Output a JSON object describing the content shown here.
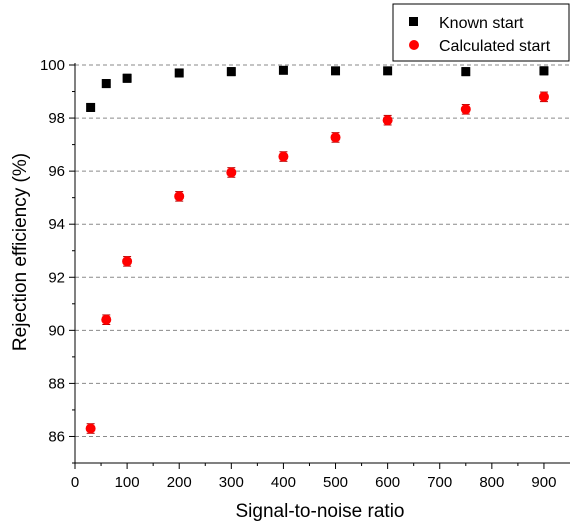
{
  "chart_data": {
    "type": "scatter",
    "title": "",
    "xlabel": "Signal-to-noise ratio",
    "ylabel": "Rejection efficiency (%)",
    "xlim": [
      0,
      950
    ],
    "ylim": [
      85,
      100
    ],
    "x_ticks": [
      0,
      100,
      200,
      300,
      400,
      500,
      600,
      700,
      800,
      900
    ],
    "y_ticks": [
      86,
      88,
      90,
      92,
      94,
      96,
      98,
      100
    ],
    "grid": "horizontal dashed",
    "legend_position": "top-right",
    "series": [
      {
        "name": "Known start",
        "marker": "square",
        "color": "#000000",
        "x": [
          30,
          60,
          100,
          200,
          300,
          400,
          500,
          600,
          750,
          900
        ],
        "y": [
          98.4,
          99.3,
          99.5,
          99.7,
          99.75,
          99.8,
          99.78,
          99.78,
          99.75,
          99.78
        ],
        "error": [
          0.15,
          0.15,
          0.15,
          0.15,
          0.15,
          0.12,
          0.12,
          0.12,
          0.15,
          0.15
        ]
      },
      {
        "name": "Calculated start",
        "marker": "circle",
        "color": "#ff0000",
        "x": [
          30,
          60,
          100,
          200,
          300,
          400,
          500,
          600,
          750,
          900
        ],
        "y": [
          86.3,
          90.4,
          92.6,
          95.05,
          95.95,
          96.55,
          97.27,
          97.92,
          98.33,
          98.8
        ],
        "error": [
          0.18,
          0.18,
          0.18,
          0.18,
          0.18,
          0.18,
          0.18,
          0.18,
          0.18,
          0.18
        ]
      }
    ]
  }
}
